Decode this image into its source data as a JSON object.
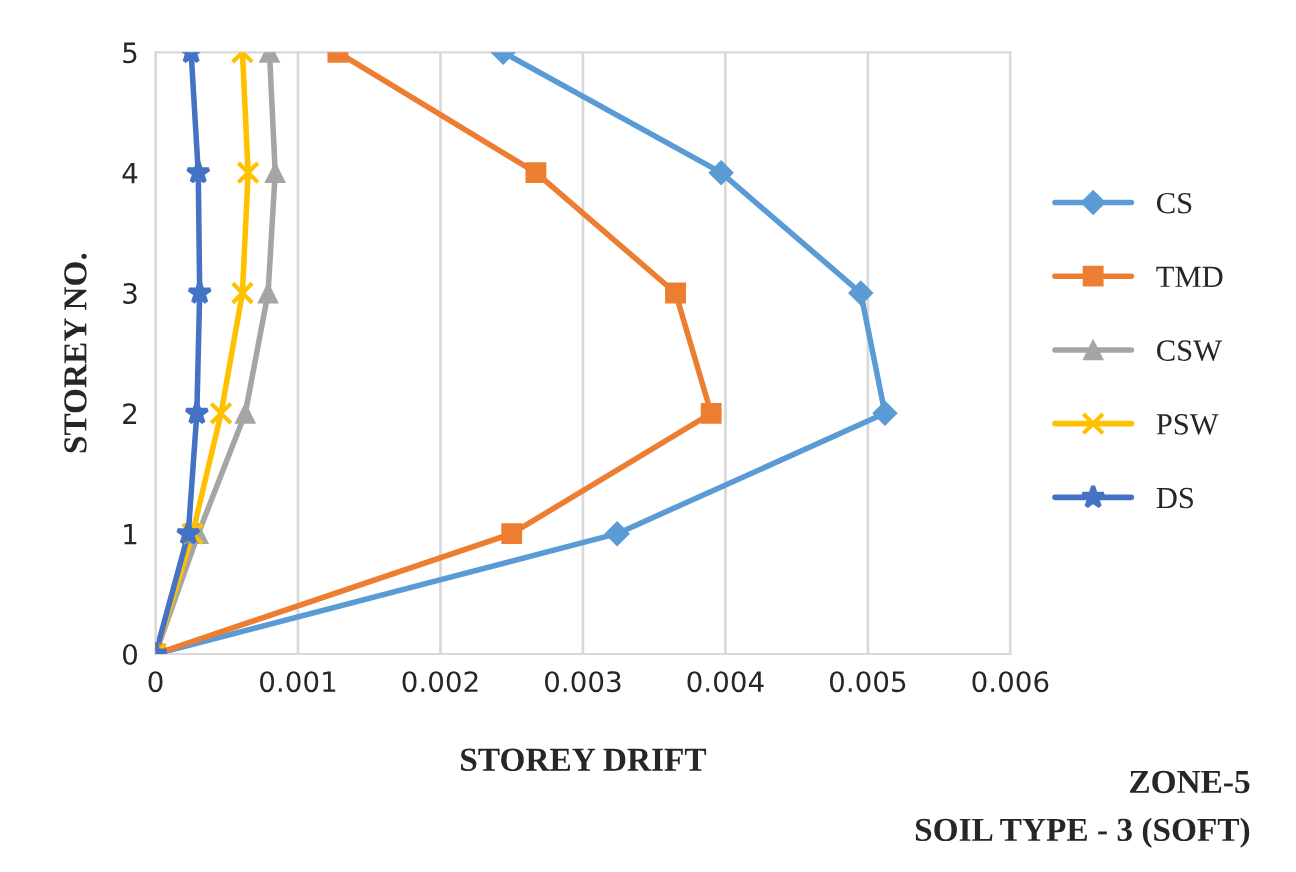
{
  "chart_data": {
    "type": "line",
    "xlabel": "STOREY DRIFT",
    "ylabel": "STOREY NO.",
    "xlim": [
      0,
      0.006
    ],
    "xticks": [
      {
        "value": 0,
        "label": "0"
      },
      {
        "value": 0.001,
        "label": "0.001"
      },
      {
        "value": 0.002,
        "label": "0.002"
      },
      {
        "value": 0.003,
        "label": "0.003"
      },
      {
        "value": 0.004,
        "label": "0.004"
      },
      {
        "value": 0.005,
        "label": "0.005"
      },
      {
        "value": 0.006,
        "label": "0.006"
      }
    ],
    "ylim": [
      0,
      5
    ],
    "yticks": [
      0,
      1,
      2,
      3,
      4,
      5
    ],
    "grid": "x",
    "legend": "right",
    "series": [
      {
        "name": "CS",
        "color": "#5b9bd5",
        "marker": "diamond",
        "x": [
          0,
          0.00324,
          0.00512,
          0.00495,
          0.00397,
          0.00244
        ],
        "values": [
          0,
          1,
          2,
          3,
          4,
          5
        ]
      },
      {
        "name": "TMD",
        "color": "#ed7d31",
        "marker": "square",
        "x": [
          0,
          0.0025,
          0.0039,
          0.00365,
          0.00267,
          0.00128
        ],
        "values": [
          0,
          1,
          2,
          3,
          4,
          5
        ]
      },
      {
        "name": "CSW",
        "color": "#a5a5a5",
        "marker": "triangle",
        "x": [
          0,
          0.0003,
          0.00063,
          0.00079,
          0.00084,
          0.0008
        ],
        "values": [
          0,
          1,
          2,
          3,
          4,
          5
        ]
      },
      {
        "name": "PSW",
        "color": "#ffc000",
        "marker": "cross",
        "x": [
          0,
          0.00026,
          0.00046,
          0.00061,
          0.00065,
          0.00061
        ],
        "values": [
          0,
          1,
          2,
          3,
          4,
          5
        ]
      },
      {
        "name": "DS",
        "color": "#4472c4",
        "marker": "star",
        "x": [
          0,
          0.00023,
          0.00029,
          0.00031,
          0.0003,
          0.00025
        ],
        "values": [
          0,
          1,
          2,
          3,
          4,
          5
        ]
      }
    ],
    "annotations": [
      "ZONE-5",
      "SOIL TYPE - 3 (SOFT)"
    ]
  }
}
